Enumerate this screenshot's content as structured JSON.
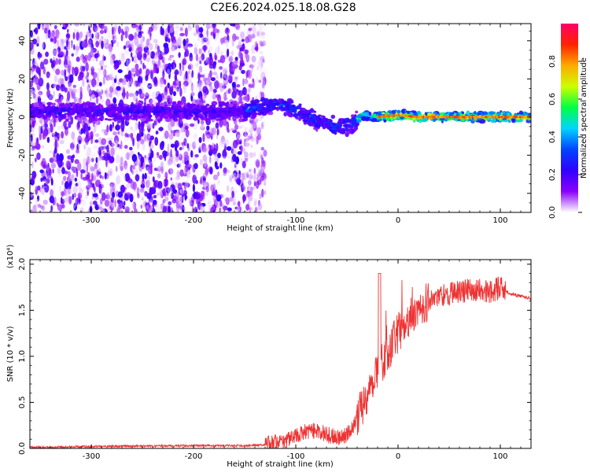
{
  "figure": {
    "title": "C2E6.2024.025.18.08.G28"
  },
  "chart_data": [
    {
      "type": "heatmap",
      "title": "C2E6.2024.025.18.08.G28",
      "xlabel": "Height of straight line (km)",
      "ylabel": "Frequency (Hz)",
      "xlim": [
        -360,
        130
      ],
      "ylim": [
        -50,
        49
      ],
      "x_ticks": [
        -300,
        -200,
        -100,
        0,
        100
      ],
      "x_tick_labels": [
        "-300",
        "-200",
        "-100",
        "0",
        "100"
      ],
      "y_ticks": [
        -40,
        -20,
        0,
        20,
        40
      ],
      "y_tick_labels": [
        "-40",
        "-20",
        "0",
        "20",
        "40"
      ],
      "colorbar": {
        "label": "Normalized spectral amplitude",
        "range": [
          0,
          1
        ],
        "ticks": [
          0.0,
          0.2,
          0.4,
          0.6,
          0.8
        ],
        "tick_labels": [
          "0.0",
          "0.2",
          "0.4",
          "0.6",
          "0.8"
        ],
        "colormap": [
          "#ffffff",
          "#8a00ff",
          "#3000ff",
          "#0044ff",
          "#00d4ff",
          "#00ff44",
          "#ccff00",
          "#ffaa00",
          "#ff2200",
          "#ff0066"
        ]
      },
      "ridge": {
        "description_points_km": [
          -360,
          -150,
          -120,
          -100,
          -80,
          -60,
          -45,
          -35,
          -20,
          0,
          20,
          130
        ],
        "frequency_hz": [
          3,
          3,
          7,
          4,
          -2,
          -5,
          -4,
          1,
          0,
          1,
          0,
          0
        ]
      },
      "grid": false
    },
    {
      "type": "line",
      "xlabel": "Height of straight line (km)",
      "ylabel": "SNR (10 * v/v)",
      "y_multiplier_label": "(x10⁴)",
      "xlim": [
        -360,
        130
      ],
      "ylim": [
        0,
        2.05
      ],
      "x_ticks": [
        -300,
        -200,
        -100,
        0,
        100
      ],
      "x_tick_labels": [
        "-300",
        "-200",
        "-100",
        "0",
        "100"
      ],
      "y_ticks": [
        0.0,
        0.5,
        1.0,
        1.5,
        2.0
      ],
      "y_tick_labels": [
        "0.0",
        "0.5",
        "1.0",
        "1.5",
        "2.0"
      ],
      "series": [
        {
          "color": "#ee3333",
          "x": [
            -360,
            -300,
            -200,
            -150,
            -130,
            -115,
            -100,
            -90,
            -80,
            -70,
            -60,
            -50,
            -45,
            -40,
            -35,
            -30,
            -25,
            -20,
            -15,
            -10,
            -5,
            0,
            10,
            20,
            30,
            40,
            50,
            60,
            70,
            80,
            90,
            100,
            110,
            120,
            130
          ],
          "y": [
            0.01,
            0.02,
            0.03,
            0.03,
            0.04,
            0.07,
            0.13,
            0.18,
            0.2,
            0.15,
            0.12,
            0.15,
            0.22,
            0.35,
            0.45,
            0.6,
            0.72,
            0.85,
            0.95,
            1.05,
            1.15,
            1.25,
            1.4,
            1.55,
            1.6,
            1.65,
            1.68,
            1.7,
            1.72,
            1.72,
            1.7,
            1.75,
            1.68,
            1.65,
            1.63
          ]
        }
      ],
      "grid": false
    }
  ]
}
